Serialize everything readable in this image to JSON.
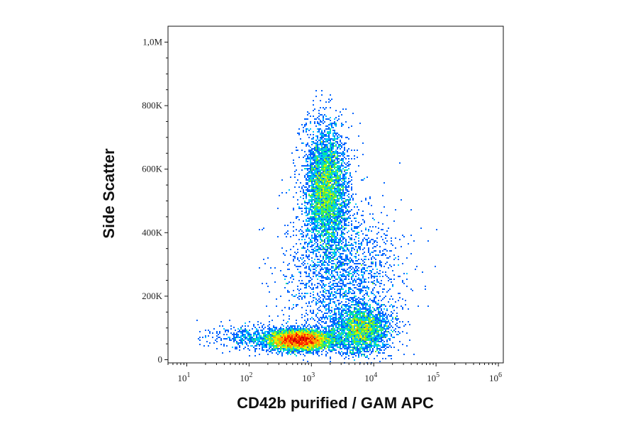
{
  "chart_data": {
    "type": "scatter",
    "xlabel": "CD42b purified / GAM APC",
    "ylabel": "Side Scatter",
    "x_scale": "log",
    "xlim": [
      5,
      1200000
    ],
    "ylim": [
      -10000,
      1050000
    ],
    "x_ticks": [
      {
        "base": "10",
        "exp": "1",
        "value": 10
      },
      {
        "base": "10",
        "exp": "2",
        "value": 100
      },
      {
        "base": "10",
        "exp": "3",
        "value": 1000
      },
      {
        "base": "10",
        "exp": "4",
        "value": 10000
      },
      {
        "base": "10",
        "exp": "5",
        "value": 100000
      },
      {
        "base": "10",
        "exp": "6",
        "value": 1000000
      }
    ],
    "y_ticks": [
      {
        "label": "0",
        "value": 0
      },
      {
        "label": "200K",
        "value": 200000
      },
      {
        "label": "400K",
        "value": 400000
      },
      {
        "label": "600K",
        "value": 600000
      },
      {
        "label": "800K",
        "value": 800000
      },
      {
        "label": "1,0M",
        "value": 1000000
      }
    ],
    "colormap": [
      "#0000c8",
      "#0064ff",
      "#00c8ff",
      "#00e6a0",
      "#64f032",
      "#e6f000",
      "#ffa000",
      "#ff2800",
      "#c80000"
    ],
    "populations": [
      {
        "center_x": 650,
        "center_y": 62000,
        "spread_log_x": 0.25,
        "spread_y": 16000,
        "count": 5200
      },
      {
        "center_x": 1700,
        "center_y": 540000,
        "spread_log_x": 0.17,
        "spread_y": 95000,
        "count": 4300
      },
      {
        "center_x": 6500,
        "center_y": 95000,
        "spread_log_x": 0.22,
        "spread_y": 38000,
        "count": 2400
      },
      {
        "center_x": 3000,
        "center_y": 260000,
        "spread_log_x": 0.45,
        "spread_y": 120000,
        "count": 2200
      },
      {
        "center_x": 120,
        "center_y": 70000,
        "spread_log_x": 0.35,
        "spread_y": 20000,
        "count": 500
      }
    ]
  }
}
